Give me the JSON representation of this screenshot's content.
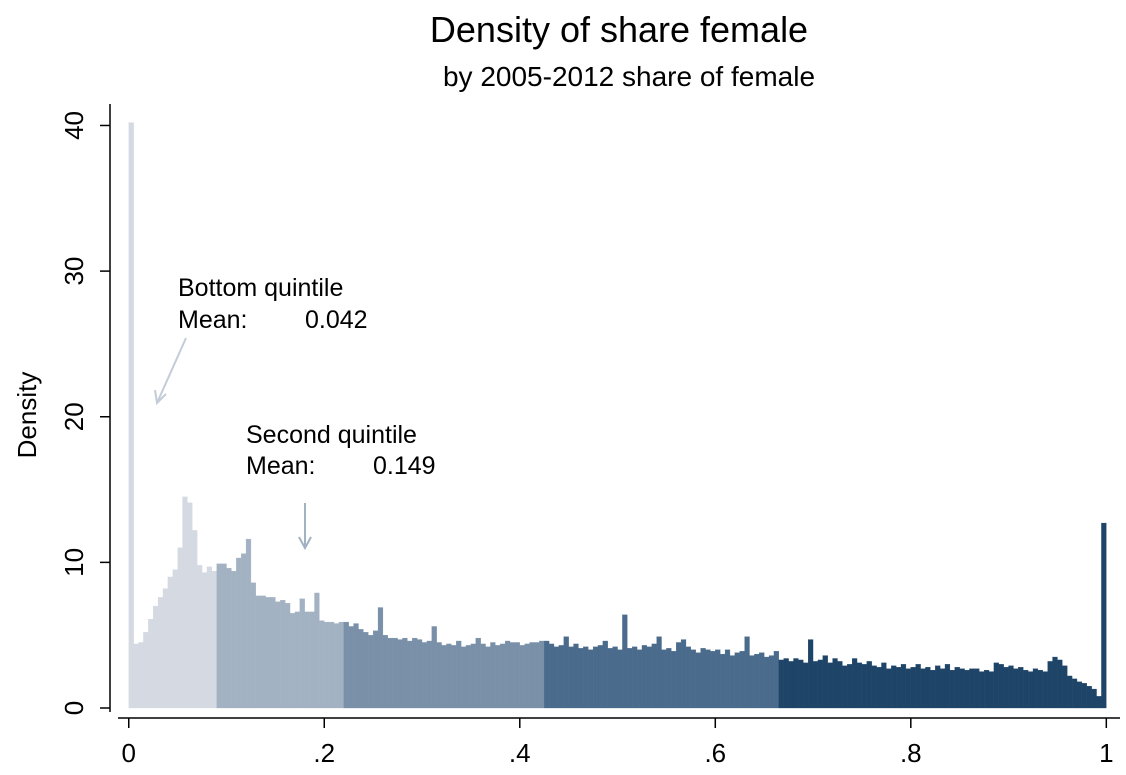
{
  "chart_data": {
    "type": "histogram",
    "title": "Density of share female",
    "subtitle": "by 2005-2012 share of female",
    "ylabel": "Density",
    "xlim": [
      -0.011,
      1.014
    ],
    "ylim": [
      0,
      41.2
    ],
    "xticks": [
      0,
      {
        "value": 0.2,
        "label": ".2"
      },
      {
        "value": 0.4,
        "label": ".4"
      },
      {
        "value": 0.6,
        "label": ".6"
      },
      {
        "value": 0.8,
        "label": ".8"
      },
      1
    ],
    "yticks": [
      0,
      10,
      20,
      30,
      40
    ],
    "grid": false,
    "annotations": [
      {
        "text": "Bottom quintile",
        "mean_label": "Mean:",
        "mean": 0.042
      },
      {
        "text": "Second quintile",
        "mean_label": "Mean:",
        "mean": 0.149
      }
    ],
    "series": [
      {
        "color": "#d4d9e2",
        "bins": [
          0,
          0.005,
          0.01,
          0.015,
          0.02,
          0.025,
          0.03,
          0.035,
          0.04,
          0.045,
          0.05,
          0.055,
          0.06,
          0.065,
          0.07,
          0.075,
          0.08,
          0.085,
          0.09
        ],
        "values": [
          40.2,
          4.4,
          4.5,
          5.2,
          6.1,
          7.0,
          7.6,
          8.2,
          9.0,
          9.5,
          11.0,
          14.5,
          14.1,
          12.2,
          9.8,
          9.3,
          9.7,
          9.4
        ]
      },
      {
        "color": "#a3b2c2",
        "bins": [
          0.09,
          0.095,
          0.1,
          0.105,
          0.11,
          0.115,
          0.12,
          0.125,
          0.13,
          0.135,
          0.14,
          0.145,
          0.15,
          0.155,
          0.16,
          0.165,
          0.17,
          0.175,
          0.18,
          0.185,
          0.19,
          0.195,
          0.2,
          0.205,
          0.21,
          0.215,
          0.22
        ],
        "values": [
          9.9,
          9.9,
          9.6,
          9.4,
          10.3,
          10.6,
          11.6,
          8.6,
          7.7,
          7.7,
          7.6,
          7.6,
          7.3,
          7.4,
          7.2,
          6.5,
          6.6,
          7.5,
          6.6,
          6.6,
          7.9,
          6.0,
          5.9,
          5.9,
          5.8,
          5.9
        ]
      },
      {
        "color": "#7990a8",
        "bins": [
          0.22,
          0.225,
          0.23,
          0.235,
          0.24,
          0.245,
          0.25,
          0.255,
          0.26,
          0.265,
          0.27,
          0.275,
          0.28,
          0.285,
          0.29,
          0.295,
          0.3,
          0.305,
          0.31,
          0.315,
          0.32,
          0.325,
          0.33,
          0.335,
          0.34,
          0.345,
          0.35,
          0.355,
          0.36,
          0.365,
          0.37,
          0.375,
          0.38,
          0.385,
          0.39,
          0.395,
          0.4,
          0.405,
          0.41,
          0.415,
          0.42,
          0.425
        ],
        "values": [
          5.9,
          5.6,
          5.8,
          5.4,
          5.2,
          5.0,
          5.3,
          6.9,
          5.0,
          4.8,
          4.8,
          4.7,
          4.8,
          4.6,
          4.8,
          4.7,
          4.5,
          4.6,
          5.6,
          4.5,
          4.3,
          4.4,
          4.3,
          4.6,
          4.2,
          4.3,
          4.4,
          4.8,
          4.4,
          4.2,
          4.5,
          4.3,
          4.4,
          4.6,
          4.5,
          4.5,
          4.3,
          4.4,
          4.5,
          4.5,
          4.6
        ]
      },
      {
        "color": "#4a6b8c",
        "bins": [
          0.425,
          0.43,
          0.435,
          0.44,
          0.445,
          0.45,
          0.455,
          0.46,
          0.465,
          0.47,
          0.475,
          0.48,
          0.485,
          0.49,
          0.495,
          0.5,
          0.505,
          0.51,
          0.515,
          0.52,
          0.525,
          0.53,
          0.535,
          0.54,
          0.545,
          0.55,
          0.555,
          0.56,
          0.565,
          0.57,
          0.575,
          0.58,
          0.585,
          0.59,
          0.595,
          0.6,
          0.605,
          0.61,
          0.615,
          0.62,
          0.625,
          0.63,
          0.635,
          0.64,
          0.645,
          0.65,
          0.655,
          0.66,
          0.665
        ],
        "values": [
          4.6,
          4.4,
          4.2,
          4.3,
          4.9,
          4.2,
          4.4,
          4.1,
          4.2,
          4.0,
          4.2,
          4.3,
          4.6,
          4.1,
          4.2,
          4.0,
          6.4,
          4.1,
          4.2,
          4.0,
          4.3,
          4.2,
          4.4,
          4.9,
          4.0,
          4.1,
          3.9,
          4.5,
          4.7,
          4.2,
          4.0,
          3.8,
          4.1,
          4.0,
          3.9,
          4.0,
          3.7,
          4.0,
          3.6,
          3.8,
          3.9,
          4.9,
          3.6,
          3.7,
          3.8,
          3.5,
          3.6,
          3.9
        ]
      },
      {
        "color": "#1e4468",
        "bins": [
          0.665,
          0.67,
          0.675,
          0.68,
          0.685,
          0.69,
          0.695,
          0.7,
          0.705,
          0.71,
          0.715,
          0.72,
          0.725,
          0.73,
          0.735,
          0.74,
          0.745,
          0.75,
          0.755,
          0.76,
          0.765,
          0.77,
          0.775,
          0.78,
          0.785,
          0.79,
          0.795,
          0.8,
          0.805,
          0.81,
          0.815,
          0.82,
          0.825,
          0.83,
          0.835,
          0.84,
          0.845,
          0.85,
          0.855,
          0.86,
          0.865,
          0.87,
          0.875,
          0.88,
          0.885,
          0.89,
          0.895,
          0.9,
          0.905,
          0.91,
          0.915,
          0.92,
          0.925,
          0.93,
          0.935,
          0.94,
          0.945,
          0.95,
          0.955,
          0.96,
          0.965,
          0.97,
          0.975,
          0.98,
          0.985,
          0.99,
          0.995,
          1.0
        ],
        "values": [
          3.3,
          3.4,
          3.2,
          3.4,
          3.3,
          3.1,
          4.7,
          3.2,
          3.3,
          3.6,
          3.1,
          3.4,
          3.2,
          2.9,
          3.0,
          3.4,
          3.1,
          3.0,
          3.2,
          2.9,
          2.8,
          3.1,
          2.7,
          2.9,
          2.8,
          3.0,
          2.7,
          2.8,
          3.0,
          2.7,
          2.8,
          2.6,
          2.9,
          2.7,
          3.0,
          2.6,
          2.8,
          2.7,
          2.6,
          2.7,
          2.7,
          2.5,
          2.6,
          2.5,
          3.1,
          3.0,
          2.8,
          2.9,
          2.7,
          2.8,
          2.6,
          2.5,
          2.7,
          2.6,
          2.5,
          3.2,
          3.5,
          3.3,
          2.9,
          2.2,
          2.0,
          1.8,
          1.7,
          1.5,
          1.3,
          0.8,
          12.7
        ]
      }
    ]
  }
}
